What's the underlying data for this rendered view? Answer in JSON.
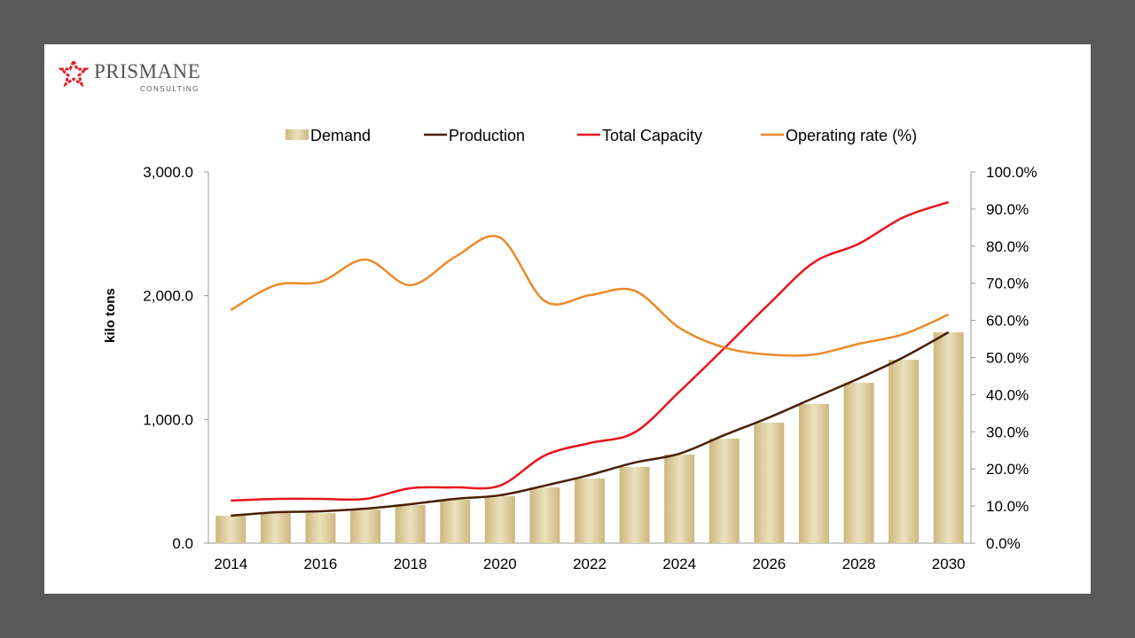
{
  "logo": {
    "name": "PRISMANE",
    "subtitle": "CONSULTING"
  },
  "chart_data": {
    "type": "bar+line",
    "title": "",
    "ylabel": "kilo tons",
    "y2label": "",
    "xlabel": "",
    "ylim": [
      0,
      3000
    ],
    "y2lim": [
      0,
      100
    ],
    "yticks": [
      "0.0",
      "1,000.0",
      "2,000.0",
      "3,000.0"
    ],
    "y2ticks": [
      "0.0%",
      "10.0%",
      "20.0%",
      "30.0%",
      "40.0%",
      "50.0%",
      "60.0%",
      "70.0%",
      "80.0%",
      "90.0%",
      "100.0%"
    ],
    "xticks": [
      "2014",
      "2016",
      "2018",
      "2020",
      "2022",
      "2024",
      "2026",
      "2028",
      "2030"
    ],
    "grid": false,
    "legend_position": "top",
    "categories": [
      2014,
      2015,
      2016,
      2017,
      2018,
      2019,
      2020,
      2021,
      2022,
      2023,
      2024,
      2025,
      2026,
      2027,
      2028,
      2029,
      2030
    ],
    "series": [
      {
        "name": "Demand",
        "type": "bar",
        "axis": "left",
        "color": "#d8c89a",
        "values": [
          222,
          243,
          243,
          272,
          308,
          351,
          380,
          451,
          522,
          616,
          716,
          845,
          974,
          1124,
          1296,
          1482,
          1704
        ]
      },
      {
        "name": "Production",
        "type": "line",
        "axis": "left",
        "color": "#4a1f05",
        "values": [
          222,
          250,
          258,
          279,
          315,
          358,
          387,
          465,
          551,
          651,
          723,
          873,
          1016,
          1174,
          1331,
          1503,
          1704
        ]
      },
      {
        "name": "Total Capacity",
        "type": "line",
        "axis": "left",
        "color": "#e8141c",
        "values": [
          344,
          358,
          358,
          358,
          444,
          451,
          465,
          709,
          809,
          895,
          1224,
          1575,
          1933,
          2269,
          2419,
          2634,
          2756
        ]
      },
      {
        "name": "Operating rate (%)",
        "type": "line",
        "axis": "right",
        "color": "#ea8a2a",
        "values": [
          62.8,
          69.5,
          70.4,
          76.4,
          69.5,
          77.1,
          82.3,
          65.2,
          66.8,
          68.0,
          58.0,
          52.7,
          50.8,
          50.8,
          53.7,
          56.3,
          61.6
        ]
      }
    ]
  }
}
